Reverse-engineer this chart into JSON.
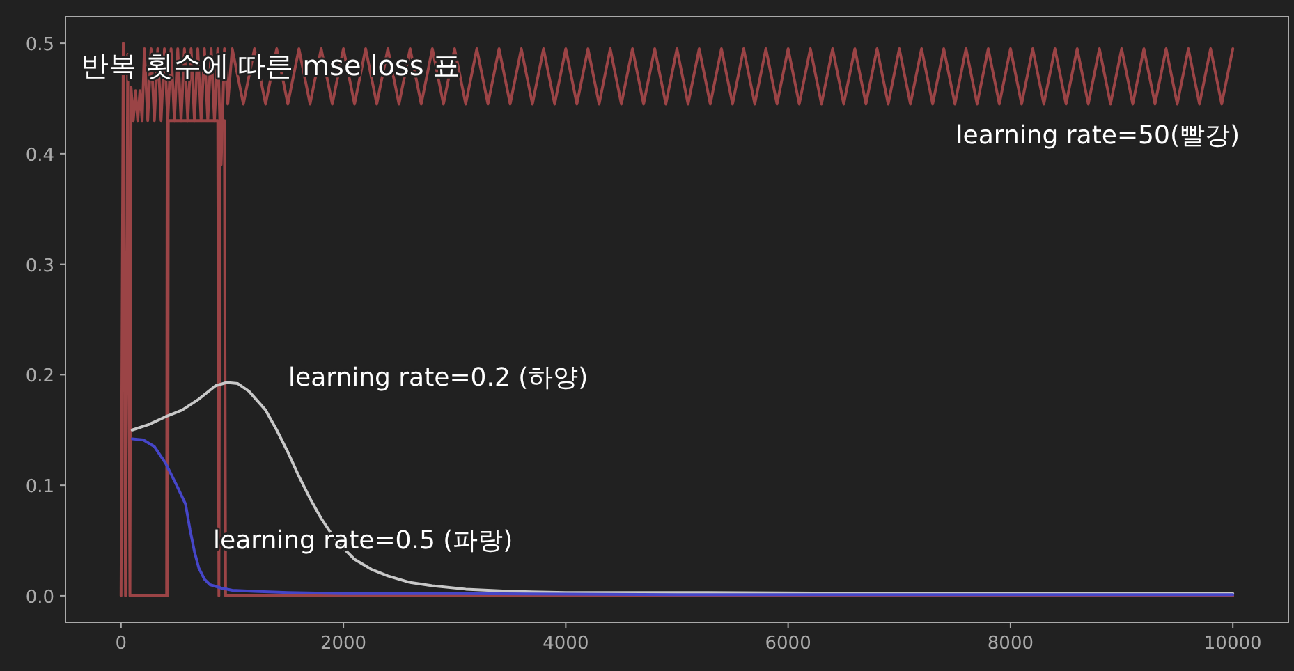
{
  "chart_data": {
    "type": "line",
    "title": "반복 횟수에 따른 mse loss 표",
    "xlim": [
      -500,
      10500
    ],
    "ylim": [
      -0.024,
      0.524
    ],
    "xticks": [
      0,
      2000,
      4000,
      6000,
      8000,
      10000
    ],
    "yticks": [
      {
        "value": 0,
        "label": "0.0"
      },
      0.1,
      0.2,
      0.3,
      0.4,
      0.5
    ],
    "grid": false,
    "annotations": [
      "learning rate=50(빨강)",
      "learning rate=0.2 (하양)",
      "learning rate=0.5 (파랑)"
    ],
    "series": [
      {
        "color": "#9b4446",
        "x": [
          0,
          20,
          40,
          60,
          80,
          90,
          110,
          130,
          150,
          170,
          190,
          210,
          240,
          270,
          300,
          330,
          360,
          390,
          420,
          450,
          480,
          510,
          540,
          570,
          600,
          630,
          660,
          690,
          720,
          750,
          780,
          810,
          840,
          870,
          900,
          930,
          960,
          1000,
          1100,
          1200,
          1300,
          1400,
          1500,
          1600,
          1700,
          1800,
          1900,
          2000,
          2100,
          2200,
          2300,
          2400,
          2500,
          2600,
          2700,
          2800,
          2900,
          3000,
          3100,
          3200,
          3300,
          3400,
          3500,
          3600,
          3700,
          3800,
          3900,
          4000,
          4100,
          4200,
          4300,
          4400,
          4500,
          4600,
          4700,
          4800,
          4900,
          5000,
          5100,
          5200,
          5300,
          5400,
          5500,
          5600,
          5700,
          5800,
          5900,
          6000,
          6100,
          6200,
          6300,
          6400,
          6500,
          6600,
          6700,
          6800,
          6900,
          7000,
          7100,
          7200,
          7300,
          7400,
          7500,
          7600,
          7700,
          7800,
          7900,
          8000,
          8100,
          8200,
          8300,
          8400,
          8500,
          8600,
          8700,
          8800,
          8900,
          9000,
          9100,
          9200,
          9300,
          9400,
          9500,
          9600,
          9700,
          9800,
          9900,
          10000
        ],
        "values": [
          0.0,
          0.5,
          0.0,
          0.49,
          0.0,
          0.46,
          0.43,
          0.457,
          0.43,
          0.457,
          0.43,
          0.495,
          0.43,
          0.495,
          0.43,
          0.495,
          0.43,
          0.495,
          0.43,
          0.495,
          0.43,
          0.495,
          0.43,
          0.495,
          0.43,
          0.495,
          0.43,
          0.495,
          0.43,
          0.495,
          0.43,
          0.495,
          0.43,
          0.495,
          0.39,
          0.495,
          0.445,
          0.495,
          0.445,
          0.495,
          0.445,
          0.495,
          0.445,
          0.495,
          0.445,
          0.495,
          0.445,
          0.495,
          0.445,
          0.495,
          0.445,
          0.495,
          0.445,
          0.495,
          0.445,
          0.495,
          0.445,
          0.495,
          0.445,
          0.495,
          0.445,
          0.495,
          0.445,
          0.495,
          0.445,
          0.495,
          0.445,
          0.495,
          0.445,
          0.495,
          0.445,
          0.495,
          0.445,
          0.495,
          0.445,
          0.495,
          0.445,
          0.495,
          0.445,
          0.495,
          0.445,
          0.495,
          0.445,
          0.495,
          0.445,
          0.495,
          0.445,
          0.495,
          0.445,
          0.495,
          0.445,
          0.495,
          0.445,
          0.495,
          0.445,
          0.495,
          0.445,
          0.495,
          0.445,
          0.495,
          0.445,
          0.495,
          0.445,
          0.495,
          0.445,
          0.495,
          0.445,
          0.495,
          0.445,
          0.495,
          0.445,
          0.495,
          0.445,
          0.495,
          0.445,
          0.495,
          0.445,
          0.495,
          0.445,
          0.495,
          0.445,
          0.495,
          0.445,
          0.495,
          0.445,
          0.495,
          0.445,
          0.495
        ]
      },
      {
        "color": "#9b4446",
        "x": [
          90,
          410,
          415,
          420,
          425,
          870,
          880,
          890,
          930,
          940,
          10000
        ],
        "values": [
          0.0,
          0.0,
          0.43,
          0.0,
          0.43,
          0.43,
          0.0,
          0.43,
          0.43,
          0.0,
          0.0
        ]
      },
      {
        "color": "#c8c8c8",
        "x": [
          100,
          250,
          400,
          550,
          700,
          850,
          950,
          1050,
          1150,
          1300,
          1400,
          1500,
          1600,
          1700,
          1800,
          1900,
          2000,
          2100,
          2250,
          2400,
          2600,
          2800,
          3100,
          3500,
          4000,
          5000,
          7000,
          10000
        ],
        "values": [
          0.15,
          0.155,
          0.162,
          0.168,
          0.178,
          0.19,
          0.193,
          0.192,
          0.185,
          0.168,
          0.15,
          0.13,
          0.108,
          0.088,
          0.07,
          0.055,
          0.043,
          0.033,
          0.024,
          0.018,
          0.012,
          0.009,
          0.006,
          0.004,
          0.003,
          0.003,
          0.002,
          0.002
        ]
      },
      {
        "color": "#4646c8",
        "x": [
          100,
          200,
          300,
          400,
          500,
          580,
          620,
          660,
          700,
          750,
          800,
          900,
          1000,
          1200,
          1500,
          2000,
          3000,
          5000,
          10000
        ],
        "values": [
          0.142,
          0.141,
          0.135,
          0.12,
          0.1,
          0.083,
          0.06,
          0.04,
          0.025,
          0.015,
          0.01,
          0.007,
          0.005,
          0.004,
          0.003,
          0.002,
          0.002,
          0.001,
          0.001
        ]
      }
    ]
  }
}
